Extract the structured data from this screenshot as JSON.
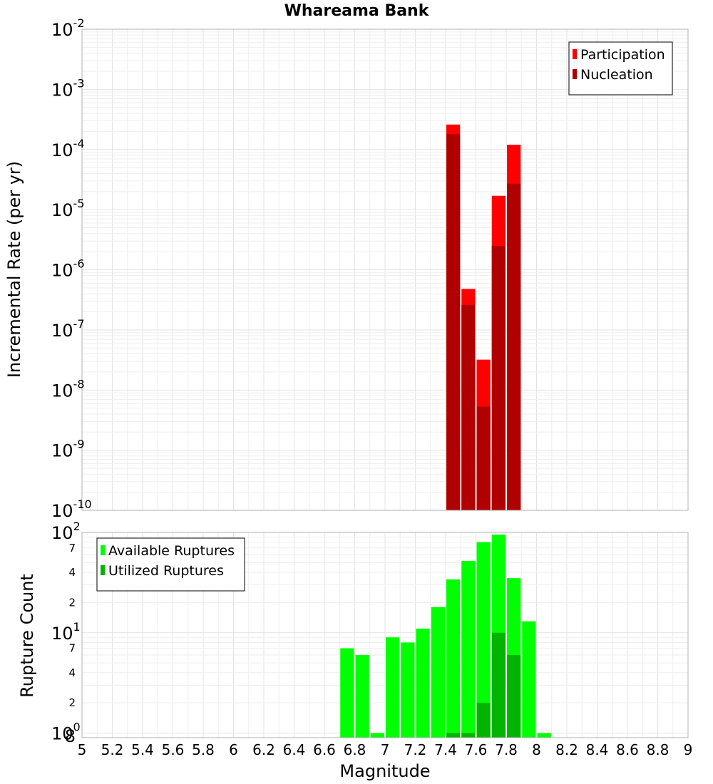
{
  "chart_data": [
    {
      "type": "bar",
      "title": "Whareama Bank",
      "xlabel": "Magnitude",
      "ylabel": "Incremental Rate (per yr)",
      "yscale": "log",
      "xlim": [
        5,
        9
      ],
      "ylim": [
        1e-10,
        0.01
      ],
      "x_ticks": [
        "5",
        "5.2",
        "5.4",
        "5.6",
        "5.8",
        "6",
        "6.2",
        "6.4",
        "6.6",
        "6.8",
        "7",
        "7.2",
        "7.4",
        "7.6",
        "7.8",
        "8",
        "8.2",
        "8.4",
        "8.6",
        "8.8",
        "9"
      ],
      "y_ticks": [
        {
          "base": "10",
          "exp": "-10"
        },
        {
          "base": "10",
          "exp": "-9"
        },
        {
          "base": "10",
          "exp": "-8"
        },
        {
          "base": "10",
          "exp": "-7"
        },
        {
          "base": "10",
          "exp": "-6"
        },
        {
          "base": "10",
          "exp": "-5"
        },
        {
          "base": "10",
          "exp": "-4"
        },
        {
          "base": "10",
          "exp": "-3"
        },
        {
          "base": "10",
          "exp": "-2"
        }
      ],
      "bin_width": 0.1,
      "legend_position": "top-right",
      "series": [
        {
          "name": "Participation",
          "color": "#ff0000",
          "x": [
            7.45,
            7.55,
            7.65,
            7.75,
            7.85
          ],
          "values": [
            0.00026,
            4.8e-07,
            3.2e-08,
            1.7e-05,
            0.00012
          ]
        },
        {
          "name": "Nucleation",
          "color": "#b00000",
          "x": [
            7.45,
            7.55,
            7.65,
            7.75,
            7.85
          ],
          "values": [
            0.00018,
            2.6e-07,
            5.3e-09,
            2.5e-06,
            2.7e-05
          ]
        }
      ]
    },
    {
      "type": "bar",
      "title": "",
      "xlabel": "Magnitude",
      "ylabel": "Rupture Count",
      "yscale": "log",
      "xlim": [
        5,
        9
      ],
      "ylim": [
        0.9,
        100
      ],
      "y_ticks": [
        {
          "base": "10",
          "exp": "0"
        },
        {
          "base": "10",
          "exp": "1"
        },
        {
          "base": "10",
          "exp": "2"
        }
      ],
      "y_minor_ticks": [
        {
          "value": 0.9,
          "label": "8"
        },
        {
          "value": 2,
          "label": "2"
        },
        {
          "value": 4,
          "label": "4"
        },
        {
          "value": 7,
          "label": "7"
        },
        {
          "value": 20,
          "label": "2"
        },
        {
          "value": 40,
          "label": "4"
        },
        {
          "value": 70,
          "label": "7"
        }
      ],
      "bin_width": 0.1,
      "legend_position": "top-left",
      "series": [
        {
          "name": "Available Ruptures",
          "color": "#00ff00",
          "x": [
            6.75,
            6.85,
            6.95,
            7.05,
            7.15,
            7.25,
            7.35,
            7.45,
            7.55,
            7.65,
            7.75,
            7.85,
            7.95,
            8.05
          ],
          "values": [
            7,
            6,
            1,
            9,
            8,
            11,
            18,
            34,
            52,
            80,
            95,
            35,
            13,
            1
          ]
        },
        {
          "name": "Utilized Ruptures",
          "color": "#00b400",
          "x": [
            7.45,
            7.55,
            7.65,
            7.75,
            7.85
          ],
          "values": [
            1,
            1,
            2,
            10,
            6
          ]
        }
      ]
    }
  ]
}
